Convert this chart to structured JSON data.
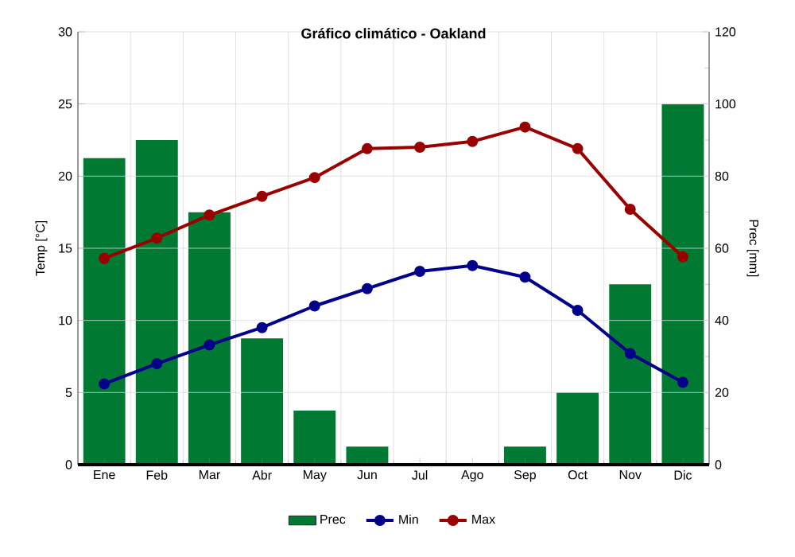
{
  "chart_data": {
    "type": "line",
    "title": "Gráfico climático - Oakland",
    "ylabel": "Temp [°C]",
    "y2label": "Prec [mm]",
    "categories": [
      "Ene",
      "Feb",
      "Mar",
      "Abr",
      "May",
      "Jun",
      "Jul",
      "Ago",
      "Sep",
      "Oct",
      "Nov",
      "Dic"
    ],
    "series": [
      {
        "name": "Prec",
        "type": "bar",
        "axis": "y2",
        "color": "#007a33",
        "values": [
          85,
          90,
          70,
          35,
          15,
          5,
          0,
          0,
          5,
          20,
          50,
          100
        ]
      },
      {
        "name": "Min",
        "color": "#00008b",
        "values": [
          5.6,
          7.0,
          8.3,
          9.5,
          11.0,
          12.2,
          13.4,
          13.8,
          13.0,
          10.7,
          7.7,
          5.7
        ]
      },
      {
        "name": "Max",
        "color": "#990000",
        "values": [
          14.3,
          15.7,
          17.3,
          18.6,
          19.9,
          21.9,
          22.0,
          22.4,
          23.4,
          21.9,
          17.7,
          14.4
        ]
      }
    ],
    "ylim": [
      0,
      30
    ],
    "yticks": [
      0,
      5,
      10,
      15,
      20,
      25,
      30
    ],
    "y2lim": [
      0,
      120
    ],
    "y2ticks": [
      0,
      20,
      40,
      60,
      80,
      100,
      120
    ],
    "grid": true,
    "legend": "bottom",
    "marker": "circle",
    "line_style": "solid"
  }
}
